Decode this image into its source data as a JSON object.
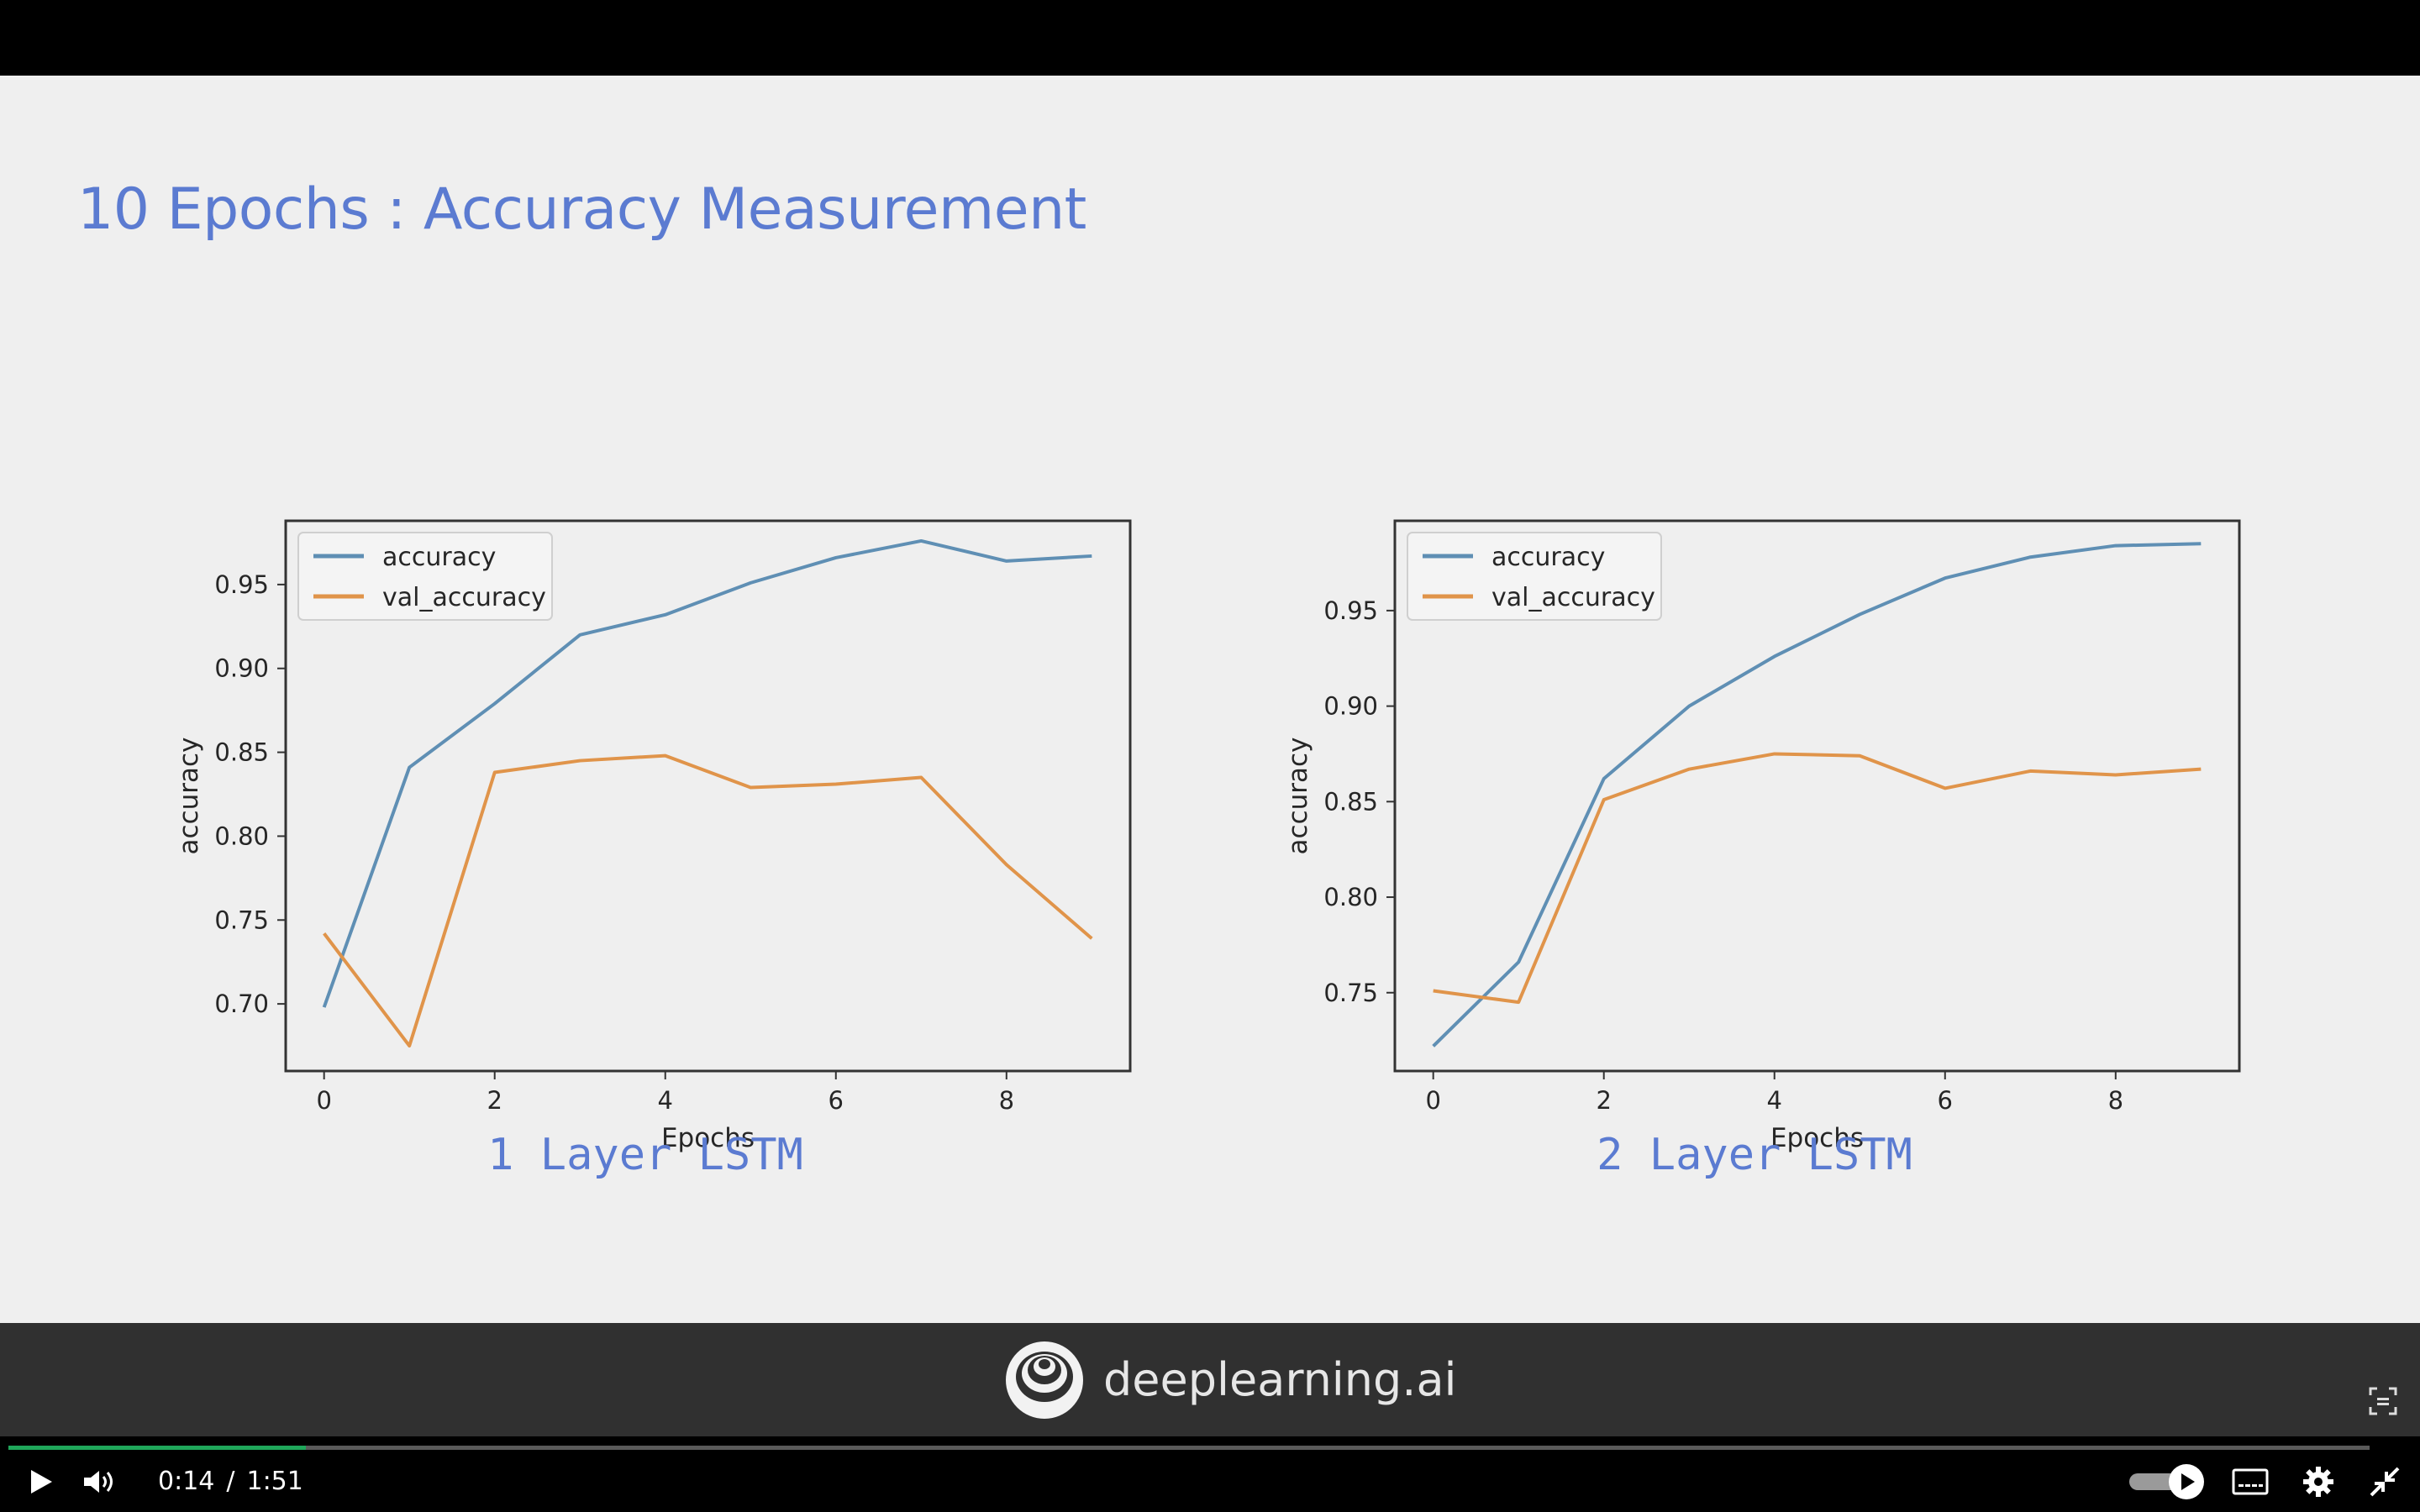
{
  "slide": {
    "title": "10 Epochs : Accuracy Measurement",
    "colors": {
      "title": "#5b7bd1",
      "background": "#efefef",
      "accuracy_line": "#5f8fb4",
      "val_accuracy_line": "#e0944a"
    }
  },
  "chart_data": [
    {
      "type": "line",
      "caption": "1 Layer LSTM",
      "xlabel": "Epochs",
      "ylabel": "accuracy",
      "x": [
        0,
        1,
        2,
        3,
        4,
        5,
        6,
        7,
        8,
        9
      ],
      "xlim": [
        -0.45,
        9.45
      ],
      "ylim": [
        0.66,
        0.988
      ],
      "xticks": [
        0,
        2,
        4,
        6,
        8
      ],
      "yticks": [
        0.7,
        0.75,
        0.8,
        0.85,
        0.9,
        0.95
      ],
      "grid": false,
      "legend": "upper left",
      "series": [
        {
          "name": "accuracy",
          "color": "#5f8fb4",
          "values": [
            0.698,
            0.841,
            0.879,
            0.92,
            0.932,
            0.951,
            0.966,
            0.976,
            0.964,
            0.967
          ]
        },
        {
          "name": "val_accuracy",
          "color": "#e0944a",
          "values": [
            0.742,
            0.675,
            0.838,
            0.845,
            0.848,
            0.829,
            0.831,
            0.835,
            0.783,
            0.739
          ]
        }
      ]
    },
    {
      "type": "line",
      "caption": "2 Layer LSTM",
      "xlabel": "Epochs",
      "ylabel": "accuracy",
      "x": [
        0,
        1,
        2,
        3,
        4,
        5,
        6,
        7,
        8,
        9
      ],
      "xlim": [
        -0.45,
        9.45
      ],
      "ylim": [
        0.709,
        0.997
      ],
      "xticks": [
        0,
        2,
        4,
        6,
        8
      ],
      "yticks": [
        0.75,
        0.8,
        0.85,
        0.9,
        0.95
      ],
      "grid": false,
      "legend": "upper left",
      "series": [
        {
          "name": "accuracy",
          "color": "#5f8fb4",
          "values": [
            0.722,
            0.766,
            0.862,
            0.9,
            0.926,
            0.948,
            0.967,
            0.978,
            0.984,
            0.985
          ]
        },
        {
          "name": "val_accuracy",
          "color": "#e0944a",
          "values": [
            0.751,
            0.745,
            0.851,
            0.867,
            0.875,
            0.874,
            0.857,
            0.866,
            0.864,
            0.867
          ]
        }
      ]
    }
  ],
  "brand": {
    "text": "deeplearning.ai",
    "logo_icon": "deeplearning-logo-icon"
  },
  "player": {
    "current_time": "0:14",
    "separator": "/",
    "duration": "1:51",
    "progress": 0.126,
    "icons": [
      "play-icon",
      "volume-icon",
      "autoplay-toggle",
      "captions-icon",
      "settings-gear-icon",
      "exit-fullscreen-icon",
      "screen-select-icon"
    ],
    "colors": {
      "progress": "#1fa65a",
      "track": "#5a5a5a"
    }
  }
}
